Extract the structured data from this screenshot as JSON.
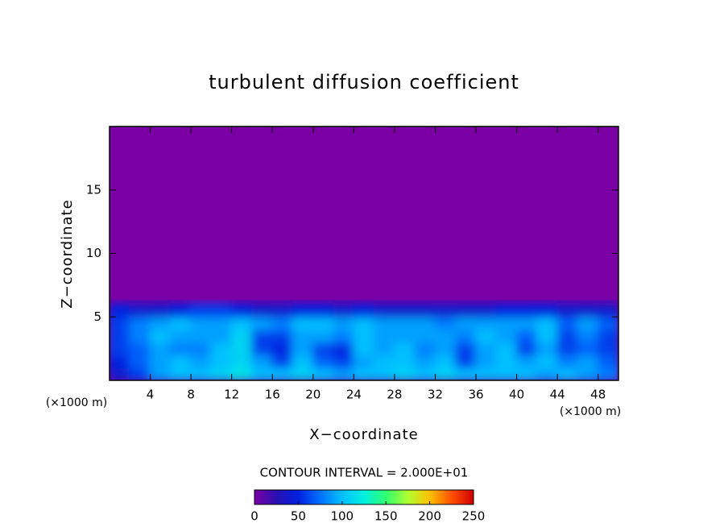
{
  "chart_data": {
    "type": "contour",
    "title": "turbulent diffusion coefficient",
    "x_label": "X−coordinate",
    "y_label": "Z−coordinate",
    "x_unit_labels": [
      "(×1000 m)",
      "(×1000 m)"
    ],
    "contour_label": "CONTOUR INTERVAL = 2.000E+01",
    "xlim": [
      0,
      50
    ],
    "xticks": [
      4,
      8,
      12,
      16,
      20,
      24,
      28,
      32,
      36,
      40,
      44,
      48
    ],
    "ylim": [
      0,
      20
    ],
    "yticks": [
      5,
      10,
      15
    ],
    "field": {
      "x": [
        1,
        3,
        5,
        7,
        9,
        11,
        13,
        15,
        17,
        19,
        21,
        23,
        25,
        27,
        29,
        31,
        33,
        35,
        37,
        39,
        41,
        43,
        45,
        47,
        49
      ],
      "z": [
        0.5,
        1.5,
        2.5,
        3.5,
        4.5,
        5.5
      ],
      "values": [
        [
          40,
          60,
          90,
          100,
          100,
          110,
          120,
          100,
          100,
          110,
          100,
          90,
          100,
          100,
          110,
          100,
          110,
          100,
          100,
          100,
          100,
          90,
          100,
          90,
          80
        ],
        [
          50,
          70,
          90,
          100,
          90,
          100,
          110,
          90,
          60,
          100,
          70,
          60,
          90,
          100,
          100,
          90,
          100,
          60,
          90,
          100,
          90,
          100,
          80,
          90,
          70
        ],
        [
          60,
          70,
          90,
          80,
          80,
          100,
          110,
          60,
          50,
          90,
          60,
          50,
          100,
          90,
          100,
          80,
          90,
          60,
          90,
          100,
          60,
          90,
          60,
          70,
          60
        ],
        [
          60,
          80,
          100,
          90,
          90,
          90,
          110,
          60,
          60,
          90,
          90,
          80,
          100,
          90,
          90,
          90,
          90,
          80,
          100,
          90,
          70,
          100,
          60,
          80,
          60
        ],
        [
          60,
          80,
          90,
          100,
          90,
          90,
          100,
          90,
          80,
          100,
          100,
          90,
          100,
          90,
          90,
          90,
          80,
          90,
          90,
          90,
          90,
          100,
          70,
          90,
          70
        ],
        [
          50,
          40,
          40,
          50,
          60,
          60,
          50,
          40,
          40,
          50,
          50,
          40,
          50,
          40,
          40,
          40,
          40,
          40,
          40,
          50,
          50,
          50,
          40,
          40,
          40
        ]
      ]
    },
    "colorbar": {
      "lim": [
        0,
        250
      ],
      "ticks": [
        0,
        50,
        100,
        150,
        200,
        250
      ],
      "colors": [
        "#7a00a6",
        "#2a10b0",
        "#0020e0",
        "#0070ff",
        "#00c0ff",
        "#00f0e0",
        "#30ff70",
        "#b0ff30",
        "#ffc000",
        "#ff5000",
        "#d00000"
      ]
    }
  }
}
